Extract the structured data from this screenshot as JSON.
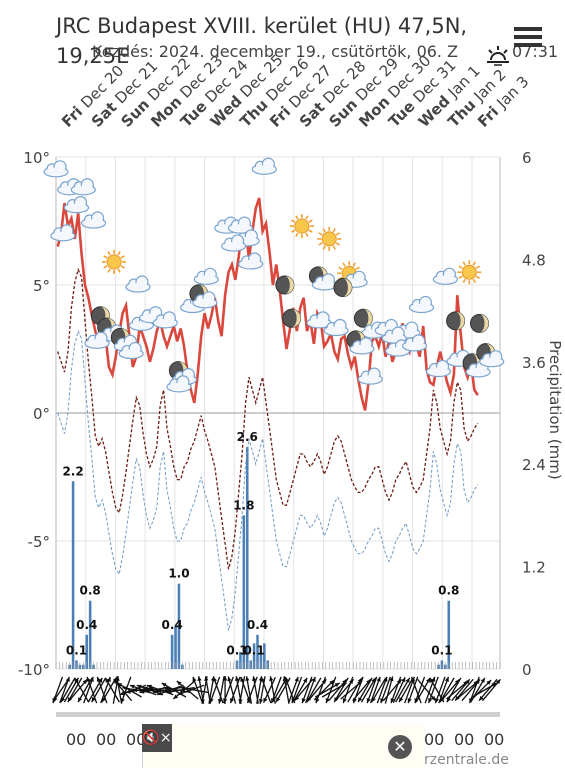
{
  "header": {
    "title_line1": "JRC Budapest XVIII. kerület (HU) 47,5N,",
    "title_line2": "19,25E",
    "subtitle": "Kezdés: 2024. december 19., csütörtök, 06. Z",
    "sunrise_time": "07:31"
  },
  "menu_icon": "hamburger-menu-icon",
  "chart_data": {
    "type": "line",
    "days": [
      "Fri Dec 20",
      "Sat Dec 21",
      "Sun Dec 22",
      "Mon Dec 23",
      "Tue Dec 24",
      "Wed Dec 25",
      "Thu Dec 26",
      "Fri Dec 27",
      "Sat Dec 28",
      "Sun Dec 29",
      "Mon Dec 30",
      "Tue Dec 31",
      "Wed Jan 1",
      "Thu Jan 2",
      "Fri Jan 3"
    ],
    "day_abbr": [
      "Fri",
      "Sat",
      "Sun",
      "Mon",
      "Tue",
      "Wed",
      "Thu",
      "Fri",
      "Sat",
      "Sun",
      "Mon",
      "Tue",
      "Wed",
      "Thu",
      "Fri"
    ],
    "day_date": [
      "Dec 20",
      "Dec 21",
      "Dec 22",
      "Dec 23",
      "Dec 24",
      "Dec 25",
      "Dec 26",
      "Dec 27",
      "Dec 28",
      "Dec 29",
      "Dec 30",
      "Dec 31",
      "Jan 1",
      "Jan 2",
      "Jan 3"
    ],
    "left_axis": {
      "ticks": [
        "10°",
        "5°",
        "0°",
        "-5°",
        "-10°"
      ],
      "values": [
        10,
        5,
        0,
        -5,
        -10
      ],
      "ylim": [
        -10,
        10
      ]
    },
    "right_axis": {
      "label": "Precipitation (mm)",
      "ticks": [
        "6",
        "4.8",
        "3.6",
        "2.4",
        "1.2",
        "0"
      ],
      "values": [
        6,
        4.8,
        3.6,
        2.4,
        1.2,
        0
      ],
      "ylim": [
        0,
        6
      ]
    },
    "series": [
      {
        "key": "temperature",
        "color": "#d9473d",
        "values": [
          6.5,
          7,
          8.2,
          7.3,
          7.6,
          6.8,
          7.8,
          6.2,
          5.0,
          4.5,
          3.8,
          3.2,
          2.8,
          3.5,
          3.0,
          1.8,
          1.5,
          2.2,
          3.1,
          3.9,
          4.2,
          3.0,
          1.8,
          2.2,
          3.4,
          3.0,
          2.6,
          2.0,
          2.5,
          3.2,
          3.6,
          3.0,
          2.6,
          3.0,
          3.4,
          2.8,
          3.3,
          2.6,
          1.6,
          0.9,
          0.4,
          1.5,
          3.0,
          3.9,
          3.3,
          3.8,
          4.5,
          3.6,
          3.0,
          4.6,
          5.5,
          5.8,
          5.2,
          6.1,
          7.2,
          7.3,
          6.0,
          7.1,
          8.0,
          8.4,
          7.1,
          7.4,
          6.3,
          5.0,
          5.8,
          4.8,
          3.6,
          2.5,
          3.3,
          4.1,
          3.2,
          4.1,
          4.5,
          3.2,
          3.6,
          2.7,
          3.9,
          3.6,
          2.6,
          2.8,
          3.1,
          2.4,
          2.1,
          2.9,
          3.0,
          2.3,
          1.8,
          2.2,
          1.3,
          0.6,
          0.1,
          1.2,
          2.8,
          3.0,
          2.6,
          3.1,
          2.2,
          2.8,
          2.0,
          2.4,
          3.1,
          3.5,
          2.7,
          2.4,
          3.1,
          2.7,
          2.2,
          3.4,
          1.7,
          1.2,
          1.1,
          1.8,
          2.4,
          1.8,
          1.2,
          0.8,
          1.5,
          4.6,
          3.1,
          1.8,
          1.4,
          1.9,
          0.9,
          0.7
        ]
      },
      {
        "key": "dewpoint",
        "color": "#6b1c14",
        "dash": "3,2",
        "values": [
          2.4,
          2.0,
          1.6,
          2.4,
          4.1,
          5.1,
          5.6,
          5.3,
          3.6,
          2.0,
          0.6,
          -0.9,
          -1.3,
          -1.0,
          -1.5,
          -2.3,
          -3.1,
          -3.7,
          -3.9,
          -3.2,
          -2.3,
          -1.3,
          -0.3,
          0.6,
          0.3,
          -0.8,
          -1.6,
          -2.1,
          -1.8,
          -1.3,
          0.3,
          0.9,
          -0.6,
          -1.3,
          -2.1,
          -2.6,
          -2.6,
          -2.1,
          -1.9,
          -1.4,
          -1.1,
          -0.6,
          -0.1,
          -0.7,
          -1.1,
          -1.6,
          -2.1,
          -3.1,
          -4.1,
          -5.1,
          -6.1,
          -5.6,
          -4.6,
          -3.1,
          -1.6,
          0.4,
          1.4,
          0.9,
          0.4,
          0.9,
          1.4,
          0.4,
          -0.6,
          -1.6,
          -2.6,
          -3.1,
          -3.6,
          -3.6,
          -3.1,
          -2.6,
          -2.1,
          -1.6,
          -1.6,
          -1.9,
          -2.1,
          -1.9,
          -1.6,
          -1.9,
          -2.4,
          -2.1,
          -1.6,
          -1.1,
          -0.9,
          -1.1,
          -1.6,
          -2.1,
          -2.6,
          -2.9,
          -3.1,
          -3.1,
          -2.9,
          -2.6,
          -2.4,
          -2.1,
          -2.1,
          -2.6,
          -3.1,
          -3.4,
          -3.1,
          -2.6,
          -2.4,
          -2.1,
          -1.9,
          -2.4,
          -2.9,
          -3.1,
          -2.9,
          -2.6,
          -1.6,
          -0.6,
          0.9,
          0.4,
          -0.6,
          -1.1,
          -1.6,
          -1.1,
          0.4,
          1.2,
          0.9,
          -0.6,
          -1.1,
          -0.9,
          -0.6,
          -0.4
        ]
      }
    ],
    "precipitation": {
      "color": "#4c7fb5",
      "bars": [
        {
          "idx": 4,
          "value": 0.05
        },
        {
          "idx": 5,
          "value": 2.2
        },
        {
          "idx": 6,
          "value": 0.1
        },
        {
          "idx": 7,
          "value": 0.05
        },
        {
          "idx": 8,
          "value": 0.05
        },
        {
          "idx": 9,
          "value": 0.4
        },
        {
          "idx": 10,
          "value": 0.8
        },
        {
          "idx": 11,
          "value": 0.05
        },
        {
          "idx": 34,
          "value": 0.4
        },
        {
          "idx": 35,
          "value": 0.5
        },
        {
          "idx": 36,
          "value": 1.0
        },
        {
          "idx": 37,
          "value": 0.05
        },
        {
          "idx": 53,
          "value": 0.1
        },
        {
          "idx": 54,
          "value": 0.2
        },
        {
          "idx": 55,
          "value": 1.8
        },
        {
          "idx": 56,
          "value": 2.6
        },
        {
          "idx": 57,
          "value": 0.1
        },
        {
          "idx": 58,
          "value": 0.3
        },
        {
          "idx": 59,
          "value": 0.4
        },
        {
          "idx": 60,
          "value": 0.2
        },
        {
          "idx": 61,
          "value": 0.3
        },
        {
          "idx": 62,
          "value": 0.1
        },
        {
          "idx": 112,
          "value": 0.05
        },
        {
          "idx": 113,
          "value": 0.1
        },
        {
          "idx": 114,
          "value": 0.05
        },
        {
          "idx": 115,
          "value": 0.8
        }
      ],
      "labels": [
        {
          "idx": 5,
          "text": "2.2",
          "value": 2.2
        },
        {
          "idx": 6,
          "text": "0.1",
          "value": 0.1
        },
        {
          "idx": 9,
          "text": "0.4",
          "value": 0.4
        },
        {
          "idx": 10,
          "text": "0.8",
          "value": 0.8
        },
        {
          "idx": 34,
          "text": "0.4",
          "value": 0.4
        },
        {
          "idx": 36,
          "text": "1.0",
          "value": 1.0
        },
        {
          "idx": 53,
          "text": "0.1",
          "value": 0.1
        },
        {
          "idx": 55,
          "text": "1.8",
          "value": 1.8
        },
        {
          "idx": 56,
          "text": "2.6",
          "value": 2.6
        },
        {
          "idx": 58,
          "text": "0.1",
          "value": 0.1
        },
        {
          "idx": 59,
          "text": "0.4",
          "value": 0.4
        },
        {
          "idx": 113,
          "text": "0.1",
          "value": 0.1
        },
        {
          "idx": 115,
          "text": "0.8",
          "value": 0.8
        }
      ]
    },
    "grid": true,
    "weather_icons": [
      {
        "hour": 0,
        "temp": 9.5,
        "icon": "cloud-icon"
      },
      {
        "hour": 4,
        "temp": 8.8,
        "icon": "cloud-icon"
      },
      {
        "hour": 8,
        "temp": 8.8,
        "icon": "cloud-icon"
      },
      {
        "hour": 6,
        "temp": 8.1,
        "icon": "cloud-icon"
      },
      {
        "hour": 2,
        "temp": 7.0,
        "icon": "cloud-icon"
      },
      {
        "hour": 11,
        "temp": 7.5,
        "icon": "cloud-icon"
      },
      {
        "hour": 17,
        "temp": 5.9,
        "icon": "sun-icon"
      },
      {
        "hour": 24,
        "temp": 5.0,
        "icon": "cloud-icon"
      },
      {
        "hour": 13,
        "temp": 3.8,
        "icon": "moon-icon"
      },
      {
        "hour": 16,
        "temp": 3.2,
        "icon": "moon-cloud-icon"
      },
      {
        "hour": 20,
        "temp": 2.8,
        "icon": "moon-cloud-icon"
      },
      {
        "hour": 12,
        "temp": 2.8,
        "icon": "cloud-icon"
      },
      {
        "hour": 25,
        "temp": 3.5,
        "icon": "cloud-icon"
      },
      {
        "hour": 28,
        "temp": 3.8,
        "icon": "cloud-icon"
      },
      {
        "hour": 32,
        "temp": 3.6,
        "icon": "cloud-icon"
      },
      {
        "hour": 22,
        "temp": 2.4,
        "icon": "cloud-icon"
      },
      {
        "hour": 37,
        "temp": 1.5,
        "icon": "moon-cloud-icon"
      },
      {
        "hour": 36,
        "temp": 1.1,
        "icon": "cloud-icon"
      },
      {
        "hour": 40,
        "temp": 4.2,
        "icon": "cloud-icon"
      },
      {
        "hour": 44,
        "temp": 5.3,
        "icon": "cloud-icon"
      },
      {
        "hour": 43,
        "temp": 4.5,
        "icon": "moon-cloud-icon"
      },
      {
        "hour": 50,
        "temp": 7.3,
        "icon": "cloud-icon"
      },
      {
        "hour": 54,
        "temp": 7.3,
        "icon": "cloud-icon"
      },
      {
        "hour": 56,
        "temp": 6.8,
        "icon": "cloud-icon"
      },
      {
        "hour": 52,
        "temp": 6.6,
        "icon": "cloud-icon"
      },
      {
        "hour": 57,
        "temp": 5.9,
        "icon": "cloud-icon"
      },
      {
        "hour": 61,
        "temp": 9.6,
        "icon": "cloud-icon"
      },
      {
        "hour": 72,
        "temp": 7.3,
        "icon": "sun-icon"
      },
      {
        "hour": 80,
        "temp": 6.8,
        "icon": "sun-icon"
      },
      {
        "hour": 67,
        "temp": 5.0,
        "icon": "moon-icon"
      },
      {
        "hour": 78,
        "temp": 5.2,
        "icon": "moon-cloud-icon"
      },
      {
        "hour": 87,
        "temp": 5.3,
        "icon": "sun-cloud-icon"
      },
      {
        "hour": 84,
        "temp": 4.9,
        "icon": "moon-icon"
      },
      {
        "hour": 69,
        "temp": 3.7,
        "icon": "moon-icon"
      },
      {
        "hour": 77,
        "temp": 3.6,
        "icon": "cloud-icon"
      },
      {
        "hour": 82,
        "temp": 3.3,
        "icon": "cloud-icon"
      },
      {
        "hour": 90,
        "temp": 3.7,
        "icon": "moon-icon"
      },
      {
        "hour": 93,
        "temp": 3.2,
        "icon": "cloud-icon"
      },
      {
        "hour": 97,
        "temp": 3.3,
        "icon": "cloud-icon"
      },
      {
        "hour": 103,
        "temp": 3.2,
        "icon": "cloud-icon"
      },
      {
        "hour": 89,
        "temp": 2.7,
        "icon": "moon-cloud-icon"
      },
      {
        "hour": 92,
        "temp": 1.4,
        "icon": "cloud-icon"
      },
      {
        "hour": 99,
        "temp": 3.0,
        "icon": "cloud-icon"
      },
      {
        "hour": 100,
        "temp": 2.5,
        "icon": "cloud-icon"
      },
      {
        "hour": 105,
        "temp": 2.7,
        "icon": "cloud-icon"
      },
      {
        "hour": 107,
        "temp": 4.2,
        "icon": "cloud-icon"
      },
      {
        "hour": 114,
        "temp": 5.3,
        "icon": "cloud-icon"
      },
      {
        "hour": 121,
        "temp": 5.5,
        "icon": "sun-icon"
      },
      {
        "hour": 117,
        "temp": 3.6,
        "icon": "moon-icon"
      },
      {
        "hour": 124,
        "temp": 3.5,
        "icon": "moon-icon"
      },
      {
        "hour": 118,
        "temp": 2.1,
        "icon": "cloud-icon"
      },
      {
        "hour": 123,
        "temp": 1.8,
        "icon": "moon-cloud-icon"
      },
      {
        "hour": 112,
        "temp": 1.7,
        "icon": "cloud-icon"
      },
      {
        "hour": 127,
        "temp": 2.2,
        "icon": "moon-cloud-icon"
      }
    ],
    "wind_directions": [
      200,
      215,
      20,
      210,
      30,
      210,
      40,
      330,
      210,
      20,
      340,
      30,
      210,
      340,
      20,
      210,
      330,
      10,
      350,
      320,
      200,
      300,
      250,
      280,
      260,
      290,
      270,
      290,
      260,
      280,
      290,
      270,
      260,
      250,
      300,
      280,
      260,
      230,
      310,
      250,
      280,
      340,
      350,
      190,
      350,
      10,
      200,
      340,
      190,
      0,
      200,
      345,
      200,
      350,
      190,
      340,
      350,
      200,
      350,
      10,
      190,
      340,
      205,
      350,
      200,
      30,
      210,
      350,
      340,
      20,
      200,
      30,
      220,
      200,
      20,
      210,
      40,
      200,
      45,
      60,
      200,
      60,
      40,
      210,
      40,
      200,
      50,
      30,
      200,
      40,
      210,
      30,
      200,
      20,
      210,
      20,
      200,
      15,
      40,
      200,
      25,
      30,
      210,
      20,
      200,
      340,
      200,
      30,
      140,
      20,
      200,
      330,
      200,
      20,
      210,
      40,
      210,
      50,
      40,
      220,
      50,
      40,
      200,
      30,
      45,
      60,
      220,
      40
    ]
  },
  "hour_labels": [
    "00",
    "00",
    "00",
    "00",
    "00",
    "00"
  ],
  "ad": {
    "mute_label": "🔇×",
    "close_label": "✕",
    "brand": "rzentrale.de"
  }
}
